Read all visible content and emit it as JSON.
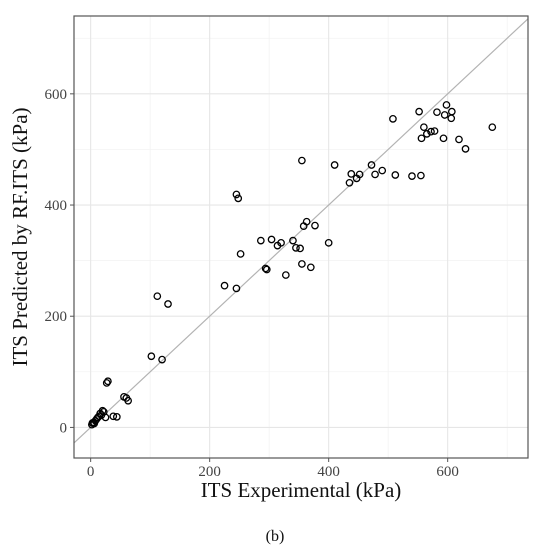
{
  "chart_data": {
    "type": "scatter",
    "xlabel": "ITS Experimental (kPa)",
    "ylabel": "ITS Predicted by RF.ITS (kPa)",
    "caption": "(b)",
    "xlim": [
      -28,
      735
    ],
    "ylim": [
      -55,
      740
    ],
    "xticks": [
      0,
      200,
      400,
      600
    ],
    "yticks": [
      0,
      200,
      400,
      600
    ],
    "grid": true,
    "reference_line": "y = x",
    "marker": "open circle",
    "series": [
      {
        "points": [
          [
            2,
            5
          ],
          [
            3,
            8
          ],
          [
            5,
            9
          ],
          [
            6,
            7
          ],
          [
            8,
            12
          ],
          [
            10,
            15
          ],
          [
            12,
            18
          ],
          [
            14,
            20
          ],
          [
            16,
            25
          ],
          [
            18,
            22
          ],
          [
            20,
            30
          ],
          [
            22,
            28
          ],
          [
            25,
            18
          ],
          [
            27,
            80
          ],
          [
            29,
            83
          ],
          [
            38,
            20
          ],
          [
            44,
            19
          ],
          [
            56,
            55
          ],
          [
            60,
            53
          ],
          [
            63,
            48
          ],
          [
            102,
            128
          ],
          [
            112,
            236
          ],
          [
            120,
            122
          ],
          [
            130,
            222
          ],
          [
            225,
            255
          ],
          [
            245,
            250
          ],
          [
            245,
            419
          ],
          [
            248,
            412
          ],
          [
            252,
            312
          ],
          [
            286,
            336
          ],
          [
            294,
            286
          ],
          [
            296,
            284
          ],
          [
            304,
            338
          ],
          [
            314,
            327
          ],
          [
            320,
            332
          ],
          [
            328,
            274
          ],
          [
            340,
            336
          ],
          [
            345,
            323
          ],
          [
            352,
            322
          ],
          [
            355,
            294
          ],
          [
            355,
            480
          ],
          [
            358,
            362
          ],
          [
            363,
            370
          ],
          [
            370,
            288
          ],
          [
            377,
            363
          ],
          [
            400,
            332
          ],
          [
            410,
            472
          ],
          [
            435,
            440
          ],
          [
            438,
            456
          ],
          [
            447,
            448
          ],
          [
            452,
            455
          ],
          [
            472,
            472
          ],
          [
            478,
            455
          ],
          [
            490,
            462
          ],
          [
            508,
            555
          ],
          [
            512,
            454
          ],
          [
            540,
            452
          ],
          [
            552,
            568
          ],
          [
            555,
            453
          ],
          [
            556,
            520
          ],
          [
            560,
            540
          ],
          [
            565,
            528
          ],
          [
            572,
            532
          ],
          [
            578,
            533
          ],
          [
            582,
            567
          ],
          [
            593,
            520
          ],
          [
            595,
            562
          ],
          [
            598,
            580
          ],
          [
            606,
            556
          ],
          [
            607,
            568
          ],
          [
            619,
            518
          ],
          [
            630,
            501
          ],
          [
            675,
            540
          ]
        ]
      }
    ]
  }
}
